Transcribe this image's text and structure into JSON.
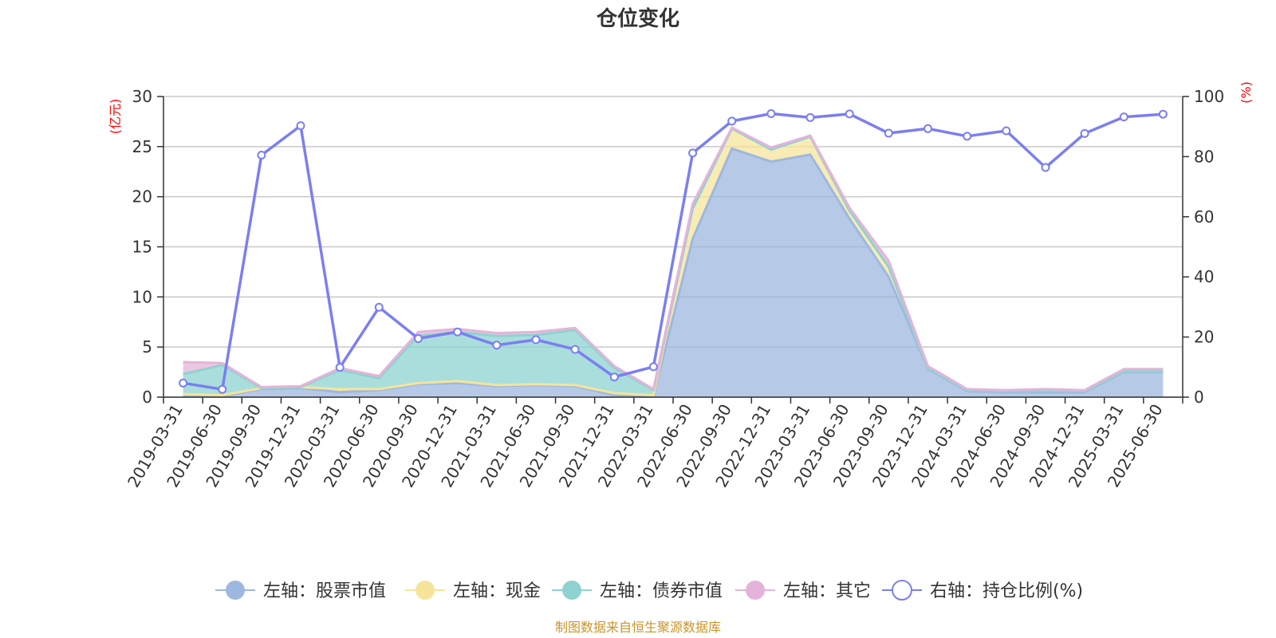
{
  "chart_data": {
    "type": "area",
    "title": "仓位变化",
    "left_axis_unit": "(亿元)",
    "right_axis_unit": "(%)",
    "ylim_left": [
      0,
      30
    ],
    "yticks_left": [
      "0",
      "5",
      "10",
      "15",
      "20",
      "25",
      "30"
    ],
    "ylim_right": [
      0,
      100
    ],
    "yticks_right": [
      "0",
      "20",
      "40",
      "60",
      "80",
      "100"
    ],
    "grid": true,
    "legend_position": "bottom",
    "categories": [
      "2019-03-31",
      "2019-06-30",
      "2019-09-30",
      "2019-12-31",
      "2020-03-31",
      "2020-06-30",
      "2020-09-30",
      "2020-12-31",
      "2021-03-31",
      "2021-06-30",
      "2021-09-30",
      "2021-12-31",
      "2022-03-31",
      "2022-06-30",
      "2022-09-30",
      "2022-12-31",
      "2023-03-31",
      "2023-06-30",
      "2023-09-30",
      "2023-12-31",
      "2024-03-31",
      "2024-06-30",
      "2024-09-30",
      "2024-12-31",
      "2025-03-31",
      "2025-06-30"
    ],
    "series": [
      {
        "name": "左轴：股票市值",
        "axis": "left",
        "kind": "stacked-area",
        "color": "#9db8e0",
        "values": [
          0.2,
          0.1,
          0.8,
          0.9,
          0.5,
          0.7,
          1.3,
          1.4,
          1.1,
          1.2,
          1.1,
          0.2,
          0.1,
          15.8,
          24.8,
          23.5,
          24.2,
          17.8,
          12.0,
          2.8,
          0.6,
          0.5,
          0.5,
          0.5,
          2.5,
          2.5
        ]
      },
      {
        "name": "左轴：现金",
        "axis": "left",
        "kind": "stacked-area",
        "color": "#f5e49a",
        "values": [
          0.1,
          0.1,
          0.1,
          0.1,
          0.3,
          0.1,
          0.1,
          0.2,
          0.1,
          0.1,
          0.1,
          0.2,
          0.1,
          3.0,
          2.0,
          1.2,
          1.8,
          0.8,
          1.0,
          0.1,
          0.1,
          0.1,
          0.1,
          0.1,
          0.1,
          0.1
        ]
      },
      {
        "name": "左轴：债券市值",
        "axis": "left",
        "kind": "stacked-area",
        "color": "#8ed3d0",
        "values": [
          2.0,
          3.0,
          0.0,
          0.0,
          1.9,
          1.1,
          4.7,
          4.9,
          4.9,
          4.9,
          5.5,
          2.5,
          0.5,
          0.0,
          0.0,
          0.0,
          0.0,
          0.0,
          0.0,
          0.0,
          0.0,
          0.0,
          0.0,
          0.0,
          0.0,
          0.0
        ]
      },
      {
        "name": "左轴：其它",
        "axis": "left",
        "kind": "stacked-area",
        "color": "#e5b3d9",
        "values": [
          1.2,
          0.2,
          0.1,
          0.1,
          0.2,
          0.2,
          0.4,
          0.3,
          0.3,
          0.3,
          0.2,
          0.2,
          0.1,
          0.5,
          0.1,
          0.2,
          0.1,
          0.3,
          0.6,
          0.2,
          0.1,
          0.1,
          0.2,
          0.1,
          0.2,
          0.2
        ]
      },
      {
        "name": "右轴：持仓比例(%)",
        "axis": "right",
        "kind": "line",
        "color": "#7b7ff0",
        "values": [
          4.7,
          2.6,
          80.5,
          90.3,
          9.9,
          29.9,
          19.5,
          21.7,
          17.3,
          19.1,
          15.9,
          6.7,
          10.1,
          81.2,
          91.8,
          94.3,
          93.0,
          94.2,
          87.8,
          89.3,
          86.8,
          88.6,
          76.4,
          87.7,
          93.2,
          94.1
        ]
      }
    ],
    "source_note": "制图数据来自恒生聚源数据库"
  }
}
